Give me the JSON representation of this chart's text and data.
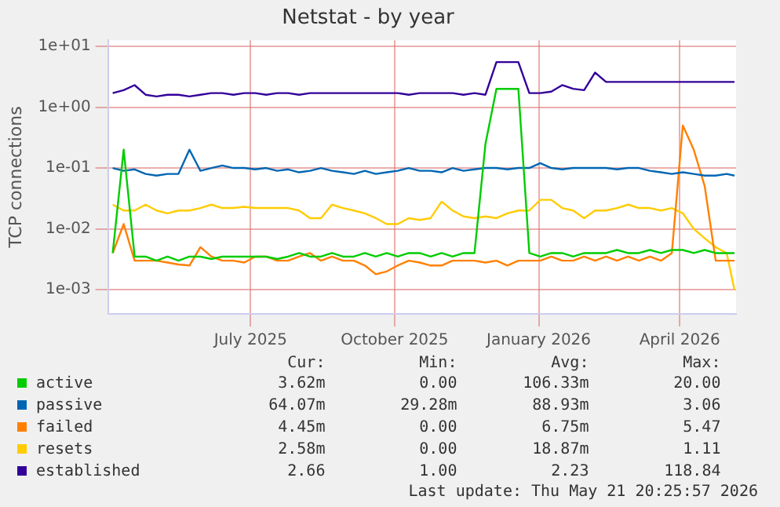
{
  "chart_data": {
    "type": "line",
    "title": "Netstat - by year",
    "ylabel": "TCP connections",
    "x": [
      "2025-04-18",
      "2025-04-25",
      "2025-05-02",
      "2025-05-09",
      "2025-05-16",
      "2025-05-23",
      "2025-05-30",
      "2025-06-06",
      "2025-06-13",
      "2025-06-20",
      "2025-06-27",
      "2025-07-04",
      "2025-07-11",
      "2025-07-18",
      "2025-07-25",
      "2025-08-01",
      "2025-08-08",
      "2025-08-15",
      "2025-08-22",
      "2025-08-29",
      "2025-09-05",
      "2025-09-12",
      "2025-09-19",
      "2025-09-26",
      "2025-10-03",
      "2025-10-10",
      "2025-10-17",
      "2025-10-24",
      "2025-10-31",
      "2025-11-07",
      "2025-11-14",
      "2025-11-21",
      "2025-11-28",
      "2025-12-05",
      "2025-12-12",
      "2025-12-19",
      "2025-12-26",
      "2026-01-02",
      "2026-01-09",
      "2026-01-16",
      "2026-01-23",
      "2026-01-30",
      "2026-02-06",
      "2026-02-13",
      "2026-02-20",
      "2026-02-27",
      "2026-03-06",
      "2026-03-13",
      "2026-03-20",
      "2026-03-27",
      "2026-04-03",
      "2026-04-10",
      "2026-04-17",
      "2026-04-24",
      "2026-05-01",
      "2026-05-08",
      "2026-05-15",
      "2026-05-20"
    ],
    "series": [
      {
        "name": "active",
        "color": "#00cc00",
        "values": [
          0.004,
          0.2,
          0.0035,
          0.0035,
          0.003,
          0.0035,
          0.003,
          0.0035,
          0.0035,
          0.0032,
          0.0035,
          0.0035,
          0.0035,
          0.0035,
          0.0035,
          0.0032,
          0.0035,
          0.004,
          0.0035,
          0.0035,
          0.004,
          0.0035,
          0.0035,
          0.004,
          0.0035,
          0.004,
          0.0035,
          0.004,
          0.004,
          0.0035,
          0.004,
          0.0035,
          0.004,
          0.004,
          0.25,
          2.0,
          2.0,
          2.0,
          0.004,
          0.0035,
          0.004,
          0.004,
          0.0035,
          0.004,
          0.004,
          0.004,
          0.0045,
          0.004,
          0.004,
          0.0045,
          0.004,
          0.0045,
          0.0045,
          0.004,
          0.0045,
          0.004,
          0.004,
          0.004
        ]
      },
      {
        "name": "passive",
        "color": "#0066b3",
        "values": [
          0.1,
          0.09,
          0.095,
          0.08,
          0.075,
          0.08,
          0.08,
          0.2,
          0.09,
          0.1,
          0.11,
          0.1,
          0.1,
          0.095,
          0.1,
          0.09,
          0.095,
          0.085,
          0.09,
          0.1,
          0.09,
          0.085,
          0.08,
          0.09,
          0.08,
          0.085,
          0.09,
          0.1,
          0.09,
          0.09,
          0.085,
          0.1,
          0.09,
          0.095,
          0.1,
          0.1,
          0.095,
          0.1,
          0.1,
          0.12,
          0.1,
          0.095,
          0.1,
          0.1,
          0.1,
          0.1,
          0.095,
          0.1,
          0.1,
          0.09,
          0.085,
          0.08,
          0.085,
          0.08,
          0.075,
          0.075,
          0.08,
          0.075
        ]
      },
      {
        "name": "failed",
        "color": "#ff8000",
        "values": [
          0.004,
          0.012,
          0.003,
          0.003,
          0.003,
          0.0028,
          0.0026,
          0.0025,
          0.005,
          0.0035,
          0.003,
          0.003,
          0.0028,
          0.0035,
          0.0035,
          0.003,
          0.003,
          0.0035,
          0.004,
          0.003,
          0.0035,
          0.003,
          0.003,
          0.0025,
          0.0018,
          0.002,
          0.0025,
          0.003,
          0.0028,
          0.0025,
          0.0025,
          0.003,
          0.003,
          0.003,
          0.0028,
          0.003,
          0.0025,
          0.003,
          0.003,
          0.003,
          0.0035,
          0.003,
          0.003,
          0.0035,
          0.003,
          0.0035,
          0.003,
          0.0035,
          0.003,
          0.0035,
          0.003,
          0.004,
          0.5,
          0.2,
          0.05,
          0.003,
          0.003,
          0.003
        ]
      },
      {
        "name": "resets",
        "color": "#ffcc00",
        "values": [
          0.025,
          0.02,
          0.02,
          0.025,
          0.02,
          0.018,
          0.02,
          0.02,
          0.022,
          0.025,
          0.022,
          0.022,
          0.023,
          0.022,
          0.022,
          0.022,
          0.022,
          0.02,
          0.015,
          0.015,
          0.025,
          0.022,
          0.02,
          0.018,
          0.015,
          0.012,
          0.012,
          0.015,
          0.014,
          0.015,
          0.028,
          0.02,
          0.016,
          0.015,
          0.016,
          0.015,
          0.018,
          0.02,
          0.02,
          0.03,
          0.03,
          0.022,
          0.02,
          0.015,
          0.02,
          0.02,
          0.022,
          0.025,
          0.022,
          0.022,
          0.02,
          0.022,
          0.018,
          0.01,
          0.007,
          0.005,
          0.004,
          0.001
        ]
      },
      {
        "name": "established",
        "color": "#330099",
        "values": [
          1.7,
          1.9,
          2.3,
          1.6,
          1.5,
          1.6,
          1.6,
          1.5,
          1.6,
          1.7,
          1.7,
          1.6,
          1.7,
          1.7,
          1.6,
          1.7,
          1.7,
          1.6,
          1.7,
          1.7,
          1.7,
          1.7,
          1.7,
          1.7,
          1.7,
          1.7,
          1.7,
          1.6,
          1.7,
          1.7,
          1.7,
          1.7,
          1.6,
          1.7,
          1.6,
          5.5,
          5.5,
          5.5,
          1.7,
          1.7,
          1.8,
          2.3,
          2.0,
          1.9,
          3.7,
          2.6,
          2.6,
          2.6,
          2.6,
          2.6,
          2.6,
          2.6,
          2.6,
          2.6,
          2.6,
          2.6,
          2.6,
          2.6
        ]
      }
    ],
    "log": "y",
    "grid": true,
    "legend": "bottom",
    "marker": "none",
    "line_style": "solid",
    "xlim": [
      "2025-04-15",
      "2026-05-21"
    ],
    "xticks": [
      {
        "value": "2025-07-15",
        "label": "July 2025"
      },
      {
        "value": "2025-10-15",
        "label": "October 2025"
      },
      {
        "value": "2026-01-15",
        "label": "January 2026"
      },
      {
        "value": "2026-04-15",
        "label": "April 2026"
      }
    ],
    "ylim": [
      0.0004,
      12.6
    ],
    "yticks": [
      {
        "value": 0.001,
        "label": "1e-03"
      },
      {
        "value": 0.01,
        "label": "1e-02"
      },
      {
        "value": 0.1,
        "label": "1e-01"
      },
      {
        "value": 1,
        "label": "1e+00"
      },
      {
        "value": 10,
        "label": "1e+01"
      }
    ],
    "annotations": [
      "Cur:",
      "Min:",
      "Avg:",
      "Max:",
      "3.62m",
      "0.00",
      "106.33m",
      "20.00",
      "64.07m",
      "29.28m",
      "88.93m",
      "3.06",
      "4.45m",
      "0.00",
      "6.75m",
      "5.47",
      "2.58m",
      "0.00",
      "18.87m",
      "1.11",
      "2.66",
      "1.00",
      "2.23",
      "118.84",
      "Last update: Thu May 21 20:25:57 2026"
    ]
  }
}
